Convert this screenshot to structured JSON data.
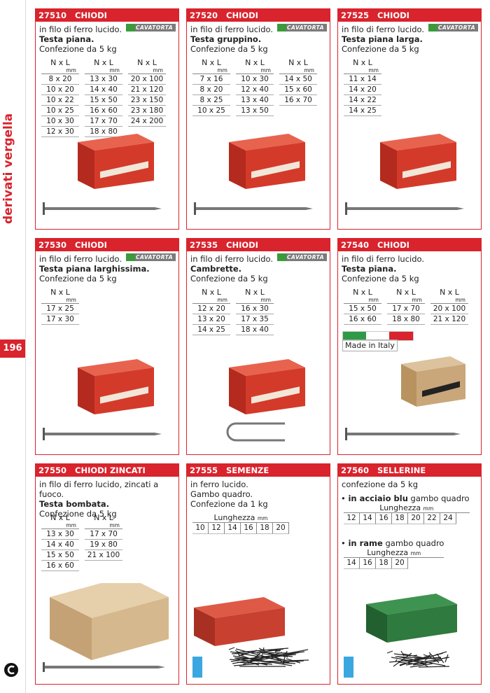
{
  "sidebar": {
    "section": "derivati vergella",
    "page_number": "196"
  },
  "products": [
    {
      "code": "27510",
      "name": "CHIODI",
      "brand": "CAVATORTA",
      "lines": [
        {
          "text": "in filo di ferro lucido.",
          "bold": false
        },
        {
          "text": "Testa piana.",
          "bold": true
        },
        {
          "text": "Confezione da 5 kg",
          "bold": false
        }
      ],
      "columns": [
        {
          "header": "N x L",
          "unit": "mm",
          "values": [
            "8 x 20",
            "10 x 20",
            "10 x 22",
            "10 x 25",
            "10 x 30",
            "12 x 30"
          ]
        },
        {
          "header": "N x L",
          "unit": "mm",
          "values": [
            "13 x 30",
            "14 x 40",
            "15 x 50",
            "16 x 60",
            "17 x 70",
            "18 x 80"
          ]
        },
        {
          "header": "N x L",
          "unit": "mm",
          "values": [
            "20 x 100",
            "21 x 120",
            "23 x 150",
            "23 x 180",
            "24 x 200"
          ]
        }
      ]
    },
    {
      "code": "27520",
      "name": "CHIODI",
      "brand": "CAVATORTA",
      "lines": [
        {
          "text": "in filo di ferro lucido.",
          "bold": false
        },
        {
          "text": "Testa gruppino.",
          "bold": true
        },
        {
          "text": "Confezione da 5 kg",
          "bold": false
        }
      ],
      "columns": [
        {
          "header": "N x L",
          "unit": "mm",
          "values": [
            "7 x 16",
            "8 x 20",
            "8 x 25",
            "10 x 25"
          ]
        },
        {
          "header": "N x L",
          "unit": "mm",
          "values": [
            "10 x 30",
            "12 x 40",
            "13 x 40",
            "13 x 50"
          ]
        },
        {
          "header": "N x L",
          "unit": "mm",
          "values": [
            "14 x 50",
            "15 x 60",
            "16 x 70"
          ]
        }
      ]
    },
    {
      "code": "27525",
      "name": "CHIODI",
      "brand": "CAVATORTA",
      "lines": [
        {
          "text": "in filo di ferro lucido.",
          "bold": false
        },
        {
          "text": "Testa piana larga.",
          "bold": true
        },
        {
          "text": "Confezione da 5 kg",
          "bold": false
        }
      ],
      "columns": [
        {
          "header": "N x L",
          "unit": "mm",
          "values": [
            "11 x 14",
            "14 x 20",
            "14 x 22",
            "14 x 25"
          ]
        }
      ]
    },
    {
      "code": "27530",
      "name": "CHIODI",
      "brand": "CAVATORTA",
      "lines": [
        {
          "text": "in filo di ferro lucido.",
          "bold": false
        },
        {
          "text": "Testa piana larghissima.",
          "bold": true
        },
        {
          "text": "Confezione da 5 kg",
          "bold": false
        }
      ],
      "columns": [
        {
          "header": "N x L",
          "unit": "mm",
          "values": [
            "17 x 25",
            "17 x 30"
          ]
        }
      ]
    },
    {
      "code": "27535",
      "name": "CHIODI",
      "brand": "CAVATORTA",
      "lines": [
        {
          "text": "in filo di ferro lucido.",
          "bold": false
        },
        {
          "text": "Cambrette.",
          "bold": true
        },
        {
          "text": "Confezione da 5 kg",
          "bold": false
        }
      ],
      "columns": [
        {
          "header": "N x L",
          "unit": "mm",
          "values": [
            "12 x 20",
            "13 x 20",
            "14 x 25"
          ]
        },
        {
          "header": "N x L",
          "unit": "mm",
          "values": [
            "16 x 30",
            "17 x 35",
            "18 x 40"
          ]
        }
      ]
    },
    {
      "code": "27540",
      "name": "CHIODI",
      "badge": "Made in Italy",
      "lines": [
        {
          "text": "in filo di ferro lucido.",
          "bold": false
        },
        {
          "text": "Testa piana.",
          "bold": true
        },
        {
          "text": "Confezione da 5 kg",
          "bold": false
        }
      ],
      "columns": [
        {
          "header": "N x L",
          "unit": "mm",
          "values": [
            "15 x 50",
            "16 x 60"
          ]
        },
        {
          "header": "N x L",
          "unit": "mm",
          "values": [
            "17 x 70",
            "18 x 80"
          ]
        },
        {
          "header": "N x L",
          "unit": "mm",
          "values": [
            "20 x 100",
            "21 x 120"
          ]
        }
      ]
    },
    {
      "code": "27550",
      "name": "CHIODI ZINCATI",
      "lines": [
        {
          "text": "in filo di ferro lucido, zincati a fuoco.",
          "bold": false
        },
        {
          "text": "Testa bombata.",
          "bold": true
        },
        {
          "text": "Confezione da 5 kg",
          "bold": false
        }
      ],
      "columns": [
        {
          "header": "N x L",
          "unit": "mm",
          "values": [
            "13 x 30",
            "14 x 40",
            "15 x 50",
            "16 x 60"
          ]
        },
        {
          "header": "N x L",
          "unit": "mm",
          "values": [
            "17 x 70",
            "19 x 80",
            "21 x 100"
          ]
        }
      ]
    },
    {
      "code": "27555",
      "name": "SEMENZE",
      "lines": [
        {
          "text": "in ferro lucido.",
          "bold": false
        },
        {
          "text": "Gambo quadro.",
          "bold": false
        },
        {
          "text": "Confezione da 1 kg",
          "bold": false
        }
      ],
      "lengths": [
        {
          "label": "Lunghezza",
          "unit": "mm",
          "values": [
            10,
            12,
            14,
            16,
            18,
            20
          ]
        }
      ]
    },
    {
      "code": "27560",
      "name": "SELLERINE",
      "lines": [
        {
          "text": "confezione da 5 kg",
          "bold": false
        }
      ],
      "lengths": [
        {
          "title": "in acciaio blu",
          "rest": "gambo quadro",
          "label": "Lunghezza",
          "unit": "mm",
          "values": [
            12,
            14,
            16,
            18,
            20,
            22,
            24
          ]
        },
        {
          "title": "in rame",
          "rest": "gambo quadro",
          "label": "Lunghezza",
          "unit": "mm",
          "values": [
            14,
            16,
            18,
            20
          ]
        }
      ]
    }
  ]
}
